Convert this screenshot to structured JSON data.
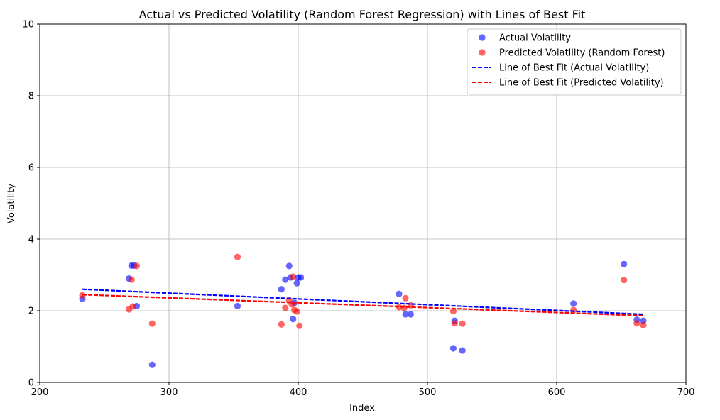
{
  "chart_data": {
    "type": "scatter",
    "title": "Actual vs Predicted Volatility (Random Forest Regression) with Lines of Best Fit",
    "xlabel": "Index",
    "ylabel": "Volatility",
    "xlim": [
      200,
      700
    ],
    "ylim": [
      0,
      10
    ],
    "x_ticks": [
      200,
      300,
      400,
      500,
      600,
      700
    ],
    "y_ticks": [
      0,
      2,
      4,
      6,
      8,
      10
    ],
    "grid": true,
    "legend_position": "top-right",
    "series": [
      {
        "name": "Actual Volatility",
        "kind": "scatter",
        "color": "#0000ff",
        "points": [
          [
            233,
            2.33
          ],
          [
            269,
            2.9
          ],
          [
            271,
            3.26
          ],
          [
            273,
            3.26
          ],
          [
            275,
            2.13
          ],
          [
            287,
            0.49
          ],
          [
            353,
            2.13
          ],
          [
            387,
            2.6
          ],
          [
            390,
            2.87
          ],
          [
            393,
            3.25
          ],
          [
            394,
            2.93
          ],
          [
            396,
            1.77
          ],
          [
            397,
            2.22
          ],
          [
            399,
            2.77
          ],
          [
            400,
            2.93
          ],
          [
            402,
            2.93
          ],
          [
            478,
            2.47
          ],
          [
            483,
            1.9
          ],
          [
            487,
            1.9
          ],
          [
            520,
            0.95
          ],
          [
            521,
            1.72
          ],
          [
            527,
            0.89
          ],
          [
            613,
            2.2
          ],
          [
            652,
            3.3
          ],
          [
            662,
            1.75
          ],
          [
            667,
            1.72
          ]
        ]
      },
      {
        "name": "Predicted Volatility (Random Forest)",
        "kind": "scatter",
        "color": "#ff0000",
        "points": [
          [
            233,
            2.43
          ],
          [
            269,
            2.04
          ],
          [
            271,
            2.87
          ],
          [
            272,
            2.12
          ],
          [
            275,
            3.25
          ],
          [
            287,
            1.64
          ],
          [
            353,
            3.5
          ],
          [
            387,
            1.62
          ],
          [
            390,
            2.08
          ],
          [
            393,
            2.3
          ],
          [
            395,
            2.18
          ],
          [
            396,
            2.95
          ],
          [
            397,
            2.02
          ],
          [
            399,
            1.98
          ],
          [
            401,
            1.58
          ],
          [
            478,
            2.1
          ],
          [
            482,
            2.08
          ],
          [
            483,
            2.35
          ],
          [
            487,
            2.15
          ],
          [
            520,
            1.99
          ],
          [
            521,
            1.65
          ],
          [
            527,
            1.64
          ],
          [
            613,
            2.02
          ],
          [
            652,
            2.86
          ],
          [
            662,
            1.65
          ],
          [
            667,
            1.6
          ]
        ]
      },
      {
        "name": "Line of Best Fit (Actual Volatility)",
        "kind": "line",
        "style": "dashed",
        "color": "#0000ff",
        "points": [
          [
            233,
            2.6
          ],
          [
            667,
            1.9
          ]
        ]
      },
      {
        "name": "Line of Best Fit (Predicted Volatility)",
        "kind": "line",
        "style": "dashed",
        "color": "#ff0000",
        "points": [
          [
            233,
            2.45
          ],
          [
            667,
            1.86
          ]
        ]
      }
    ]
  }
}
